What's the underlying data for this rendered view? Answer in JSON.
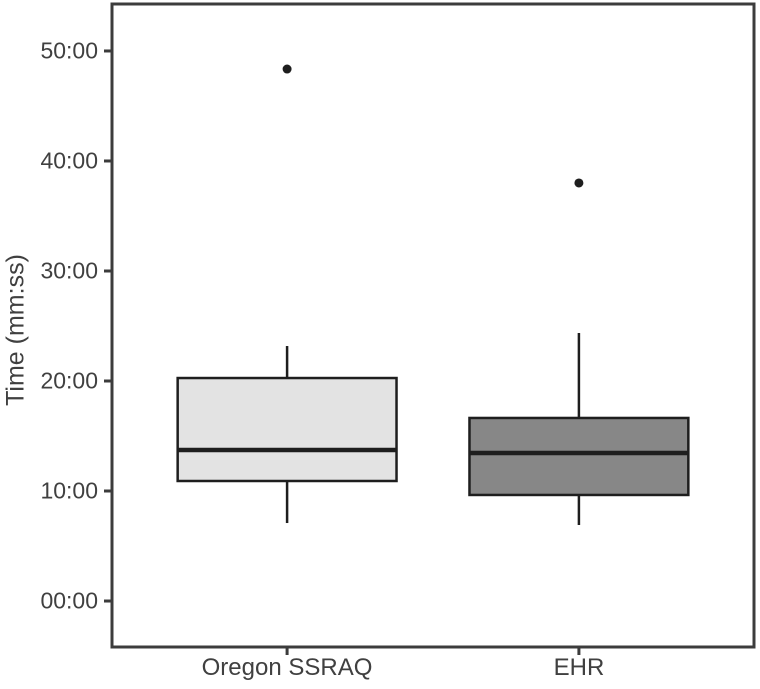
{
  "chart_data": {
    "type": "boxplot",
    "title": "",
    "xlabel": "",
    "ylabel": "Time (mm:ss)",
    "categories": [
      "Oregon SSRAQ",
      "EHR"
    ],
    "legend": "none",
    "grid": "off",
    "y_axis": {
      "tick_labels": [
        "00:00",
        "10:00",
        "20:00",
        "30:00",
        "40:00",
        "50:00"
      ],
      "tick_minutes": [
        0,
        10,
        20,
        30,
        40,
        50
      ],
      "range_minutes": [
        -4.18,
        54.27
      ],
      "unit": "mm:ss"
    },
    "series": [
      {
        "name": "Oregon SSRAQ",
        "fill": "#e3e3e3",
        "stats_minutes": {
          "whisker_low": 7.09,
          "q1": 10.91,
          "median": 13.73,
          "q3": 20.27,
          "whisker_high": 23.18
        },
        "stats_mmss": {
          "whisker_low": "07:05",
          "q1": "10:55",
          "median": "13:44",
          "q3": "20:16",
          "whisker_high": "23:11"
        },
        "outliers_minutes": [
          48.36
        ],
        "outliers_mmss": [
          "48:22"
        ]
      },
      {
        "name": "EHR",
        "fill": "#878787",
        "stats_minutes": {
          "whisker_low": 6.91,
          "q1": 9.64,
          "median": 13.45,
          "q3": 16.64,
          "whisker_high": 24.36
        },
        "stats_mmss": {
          "whisker_low": "06:55",
          "q1": "09:38",
          "median": "13:27",
          "q3": "16:38",
          "whisker_high": "24:22"
        },
        "outliers_minutes": [
          38.0
        ],
        "outliers_mmss": [
          "38:00"
        ]
      }
    ],
    "colors": {
      "stroke": "#1e1e1e",
      "panel_border": "#3c3c3c",
      "text": "#404040",
      "background": "#ffffff"
    }
  }
}
